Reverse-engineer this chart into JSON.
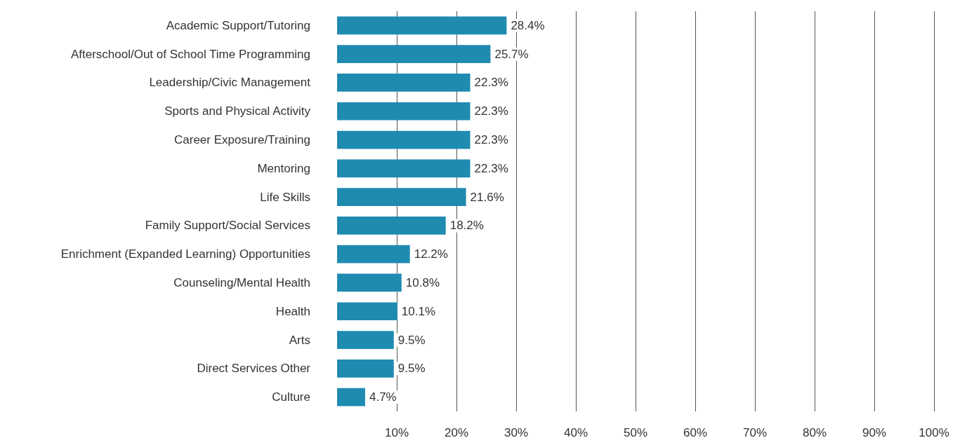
{
  "chart_data": {
    "type": "bar",
    "orientation": "horizontal",
    "categories": [
      "Academic Support/Tutoring",
      "Afterschool/Out of School Time Programming",
      "Leadership/Civic Management",
      "Sports and Physical Activity",
      "Career Exposure/Training",
      "Mentoring",
      "Life Skills",
      "Family Support/Social Services",
      "Enrichment (Expanded Learning) Opportunities",
      "Counseling/Mental Health",
      "Health",
      "Arts",
      "Direct Services Other",
      "Culture"
    ],
    "values": [
      28.4,
      25.7,
      22.3,
      22.3,
      22.3,
      22.3,
      21.6,
      18.2,
      12.2,
      10.8,
      10.1,
      9.5,
      9.5,
      4.7
    ],
    "value_labels": [
      "28.4%",
      "25.7%",
      "22.3%",
      "22.3%",
      "22.3%",
      "22.3%",
      "21.6%",
      "18.2%",
      "12.2%",
      "10.8%",
      "10.1%",
      "9.5%",
      "9.5%",
      "4.7%"
    ],
    "color": "#1f8bb0",
    "xlim": [
      0,
      100
    ],
    "xticks": [
      {
        "value": 10,
        "label": "10%"
      },
      {
        "value": 20,
        "label": "20%"
      },
      {
        "value": 30,
        "label": "30%"
      },
      {
        "value": 40,
        "label": "40%"
      },
      {
        "value": 50,
        "label": "50%"
      },
      {
        "value": 60,
        "label": "60%"
      },
      {
        "value": 70,
        "label": "70%"
      },
      {
        "value": 80,
        "label": "80%"
      },
      {
        "value": 90,
        "label": "90%"
      },
      {
        "value": 100,
        "label": "100%"
      }
    ],
    "grid": "x"
  }
}
